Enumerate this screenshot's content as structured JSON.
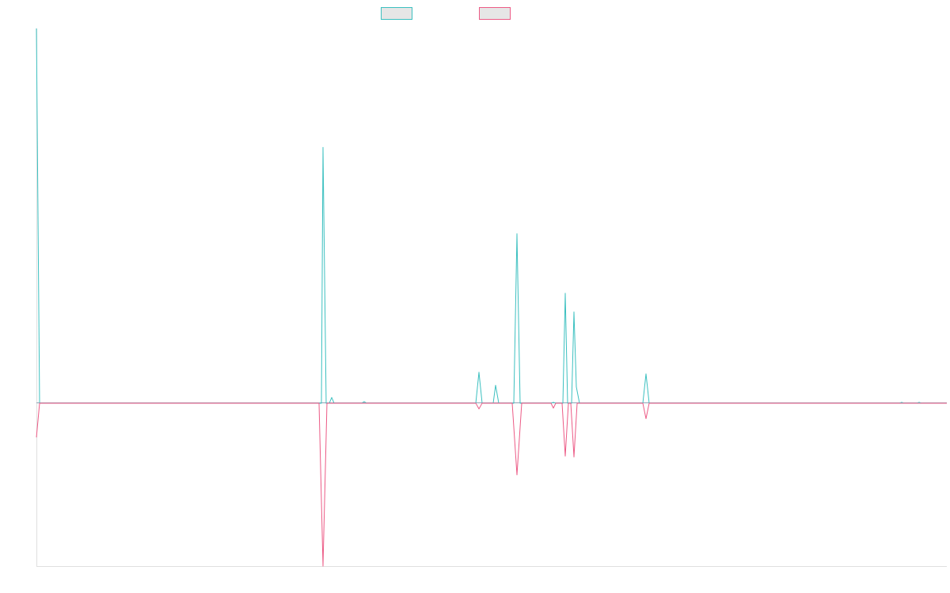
{
  "chart_data": {
    "type": "line",
    "title": "",
    "xlabel": "",
    "ylabel": "",
    "legend_placement": "top-center",
    "grid": false,
    "axes": {
      "x_visible_line": true,
      "y_visible_line": true,
      "ticks_visible": false
    },
    "x_range": [
      0,
      115
    ],
    "y_range": [
      -100,
      230
    ],
    "colors": {
      "series_a": "#3cc0c0",
      "series_b": "#ec5b86",
      "legend_fill": "#e6e6e6",
      "axis": "#e0e0e0",
      "baseline": "#8fa3b5"
    },
    "series": [
      {
        "name": "",
        "color": "#3cc0c0",
        "points": [
          [
            0,
            230
          ],
          [
            0.4,
            0
          ],
          [
            36,
            0
          ],
          [
            36.2,
            157
          ],
          [
            36.6,
            0
          ],
          [
            37,
            0
          ],
          [
            37.3,
            3.5
          ],
          [
            37.6,
            0
          ],
          [
            41.1,
            0
          ],
          [
            41.4,
            1
          ],
          [
            41.7,
            0
          ],
          [
            55.5,
            0
          ],
          [
            55.9,
            19
          ],
          [
            56.3,
            0
          ],
          [
            57.7,
            0
          ],
          [
            58,
            11
          ],
          [
            58.4,
            0
          ],
          [
            60.3,
            0
          ],
          [
            60.7,
            104
          ],
          [
            61.1,
            0
          ],
          [
            65,
            0
          ],
          [
            65.3,
            0.5
          ],
          [
            65.6,
            0
          ],
          [
            66.5,
            0
          ],
          [
            66.8,
            67.5
          ],
          [
            67.1,
            0
          ],
          [
            67.6,
            0
          ],
          [
            67.9,
            56
          ],
          [
            68.2,
            10
          ],
          [
            68.6,
            0
          ],
          [
            76.6,
            0
          ],
          [
            77,
            18
          ],
          [
            77.4,
            0
          ],
          [
            109,
            0
          ],
          [
            109.3,
            0.5
          ],
          [
            109.6,
            0
          ],
          [
            111.2,
            0
          ],
          [
            111.5,
            0.5
          ],
          [
            111.8,
            0
          ],
          [
            115,
            0
          ]
        ]
      },
      {
        "name": "",
        "color": "#ec5b86",
        "points": [
          [
            0,
            -21
          ],
          [
            0.4,
            0
          ],
          [
            35.7,
            0
          ],
          [
            36.2,
            -100
          ],
          [
            36.7,
            0
          ],
          [
            55.5,
            0
          ],
          [
            55.9,
            -3.5
          ],
          [
            56.3,
            0
          ],
          [
            60.1,
            0
          ],
          [
            60.7,
            -44
          ],
          [
            61.3,
            0
          ],
          [
            65,
            0
          ],
          [
            65.3,
            -3
          ],
          [
            65.6,
            0
          ],
          [
            66.4,
            0
          ],
          [
            66.8,
            -32.5
          ],
          [
            67.2,
            0
          ],
          [
            67.5,
            0
          ],
          [
            67.9,
            -33
          ],
          [
            68.3,
            0
          ],
          [
            76.6,
            0
          ],
          [
            77,
            -9.5
          ],
          [
            77.4,
            0
          ],
          [
            115,
            0
          ]
        ]
      }
    ]
  }
}
